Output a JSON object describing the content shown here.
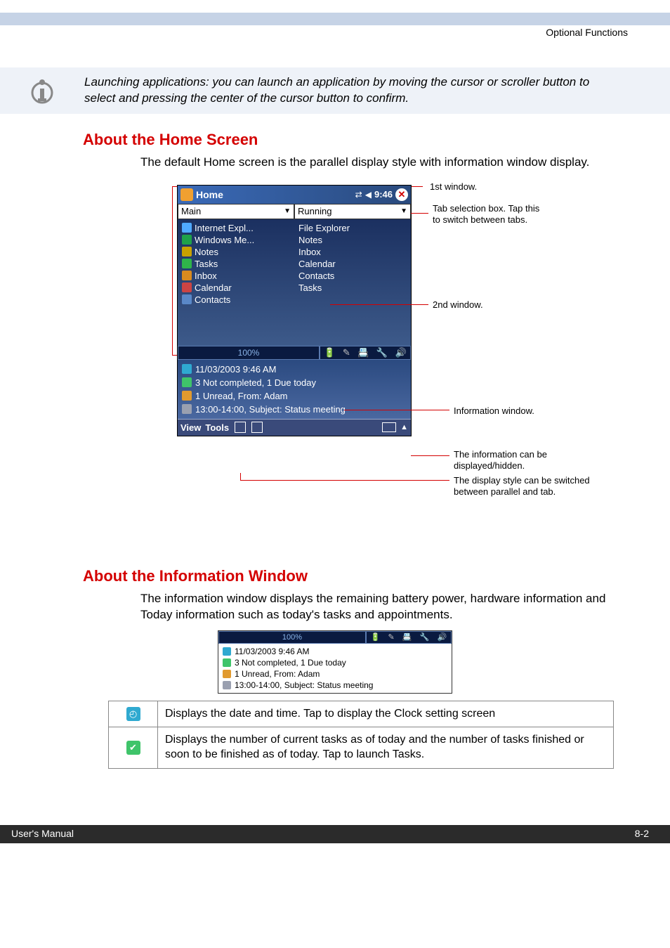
{
  "header": {
    "right_text": "Optional Functions"
  },
  "callout": {
    "text": "Launching applications: you can launch an application by moving the cursor or scroller button to select and pressing the center of the cursor button to confirm."
  },
  "section1": {
    "heading": "About the Home Screen",
    "body": "The default Home screen is the parallel display style with information window display."
  },
  "screenshot1": {
    "title": "Home",
    "conn_glyph": "⇄",
    "speaker_glyph": "◀",
    "time": "9:46",
    "close_glyph": "✕",
    "tab_left": "Main",
    "tab_right": "Running",
    "col_left": [
      {
        "label": "Internet Expl...",
        "color": "#4fa9ff"
      },
      {
        "label": "Windows Me...",
        "color": "#1fa14a"
      },
      {
        "label": "Notes",
        "color": "#c9a100"
      },
      {
        "label": "Tasks",
        "color": "#2fb44a"
      },
      {
        "label": "Inbox",
        "color": "#d98a1f"
      },
      {
        "label": "Calendar",
        "color": "#cc4444"
      },
      {
        "label": "Contacts",
        "color": "#5a88c8"
      }
    ],
    "col_right": [
      {
        "label": "File Explorer"
      },
      {
        "label": "Notes"
      },
      {
        "label": "Inbox"
      },
      {
        "label": "Calendar"
      },
      {
        "label": "Contacts"
      },
      {
        "label": "Tasks"
      }
    ],
    "battery_pct": "100%",
    "tray_icons": [
      "🔋",
      "📝",
      "📅",
      "🔊",
      "📶"
    ],
    "info_lines": [
      {
        "icon_color": "#2fa9d0",
        "text": "11/03/2003 9:46 AM"
      },
      {
        "icon_color": "#3fc46a",
        "text": "3 Not completed, 1 Due today"
      },
      {
        "icon_color": "#e19a2f",
        "text": "1 Unread, From: Adam"
      },
      {
        "icon_color": "#9aa0b0",
        "text": "13:00-14:00, Subject: Status meeting"
      }
    ],
    "menu": {
      "view": "View",
      "tools": "Tools"
    }
  },
  "annotations": {
    "a1": "1st window.",
    "a2": "Tab selection box. Tap this to switch between tabs.",
    "a3": "2nd window.",
    "a4": "Information window.",
    "a5": "The information can be displayed/hidden.",
    "a6": "The display style can be switched between parallel and tab."
  },
  "section2": {
    "heading": "About the Information Window",
    "body": "The information window displays the remaining battery power, hardware information and Today information such as today's tasks and appointments."
  },
  "screenshot2": {
    "battery_pct": "100%",
    "lines": [
      {
        "icon_color": "#2fa9d0",
        "text": "11/03/2003 9:46 AM"
      },
      {
        "icon_color": "#3fc46a",
        "text": "3 Not completed, 1 Due today"
      },
      {
        "icon_color": "#e19a2f",
        "text": "1 Unread, From: Adam"
      },
      {
        "icon_color": "#9aa0b0",
        "text": "13:00-14:00, Subject: Status meeting"
      }
    ]
  },
  "table": {
    "rows": [
      {
        "icon_color": "#2fa9d0",
        "glyph": "◴",
        "text": "Displays the date and time. Tap to display the Clock setting screen"
      },
      {
        "icon_color": "#3fc46a",
        "glyph": "✔",
        "text": "Displays the number of current tasks as of today and the number of tasks finished or soon to be finished as of today. Tap to launch Tasks."
      }
    ]
  },
  "footer": {
    "left": "User's Manual",
    "right": "8-2"
  },
  "colors": {
    "header_bar": "#c6d3e6",
    "callout_bg": "#eef2f8",
    "heading_red": "#d40000",
    "line_red": "#d40000",
    "footer_bg": "#2b2b2b"
  }
}
